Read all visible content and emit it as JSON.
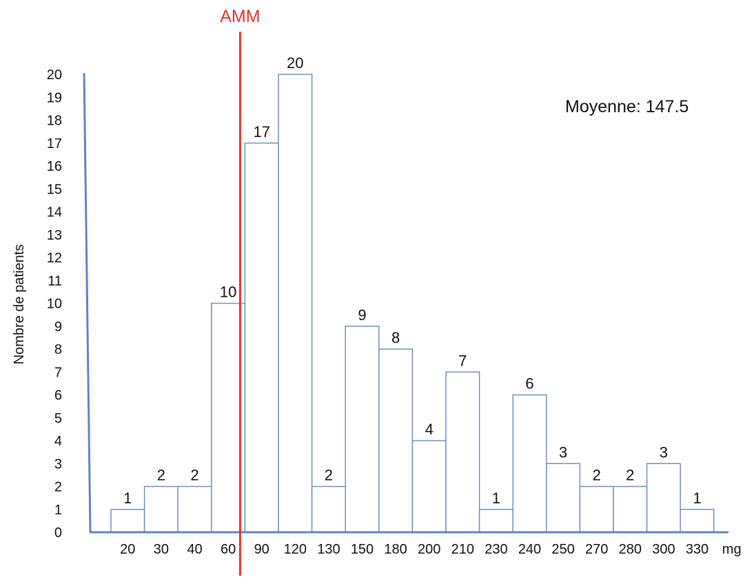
{
  "chart_data": {
    "type": "bar",
    "title": "",
    "xlabel": "",
    "ylabel": "Nombre de patients",
    "x_unit": "mg",
    "categories": [
      "20",
      "30",
      "40",
      "60",
      "90",
      "120",
      "130",
      "150",
      "180",
      "200",
      "210",
      "230",
      "240",
      "250",
      "270",
      "280",
      "300",
      "330"
    ],
    "values": [
      1,
      2,
      2,
      10,
      17,
      20,
      2,
      9,
      8,
      4,
      7,
      1,
      6,
      3,
      2,
      2,
      3,
      1
    ],
    "y_ticks": [
      "0",
      "1",
      "2",
      "3",
      "4",
      "5",
      "6",
      "7",
      "8",
      "9",
      "10",
      "11",
      "12",
      "13",
      "14",
      "15",
      "16",
      "17",
      "18",
      "19",
      "20"
    ],
    "ylim": [
      0,
      20
    ],
    "grid": false,
    "legend": "none",
    "reference_line": {
      "label": "AMM",
      "position": "between 60 and 90",
      "color": "#e8302a"
    },
    "annotation": "Moyenne: 147.5",
    "colors": {
      "bar_stroke": "#6e8fc2",
      "axis": "#5b86c4",
      "text": "#111111"
    }
  }
}
